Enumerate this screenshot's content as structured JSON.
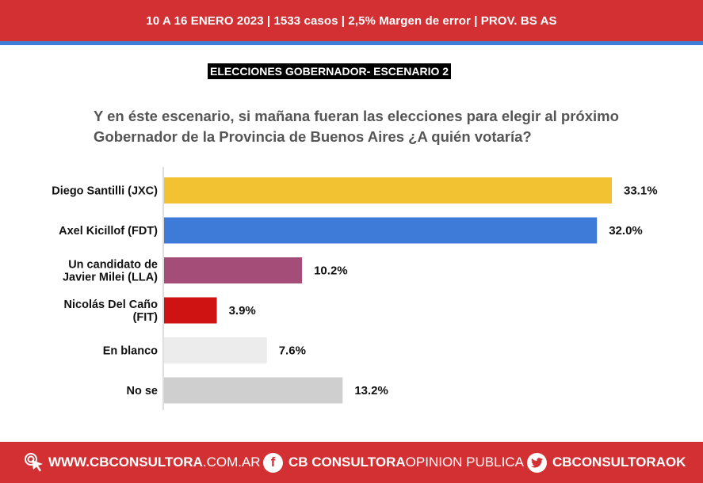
{
  "header": {
    "info": "10 A 16 ENERO 2023 | 1533 casos  |  2,5% Margen de error  | PROV. BS AS"
  },
  "section_label": "ELECCIONES GOBERNADOR- ESCENARIO 2",
  "question": {
    "line1": "Y en éste escenario, si mañana fueran las elecciones para elegir al próximo",
    "line2": "Gobernador de la Provincia de Buenos Aires ¿A quién votaría?"
  },
  "chart_data": {
    "type": "bar",
    "orientation": "horizontal",
    "categories": [
      "Diego Santilli (JXC)",
      "Axel Kicillof (FDT)",
      "Un candidato de\nJavier Milei (LLA)",
      "Nicolás Del Caño\n(FIT)",
      "En blanco",
      "No se"
    ],
    "values": [
      33.1,
      32.0,
      10.2,
      3.9,
      7.6,
      13.2
    ],
    "value_labels": [
      "33.1%",
      "32.0%",
      "10.2%",
      "3.9%",
      "7.6%",
      "13.2%"
    ],
    "colors": [
      "#f2c233",
      "#3e7bd8",
      "#a34d78",
      "#cf1212",
      "#ececec",
      "#cfcfcf"
    ],
    "xlim": [
      0,
      33.1
    ],
    "grid": false
  },
  "footer": {
    "web_strong": "WWW.CBCONSULTORA",
    "web_light": ".COM.AR",
    "fb_strong": "CB CONSULTORA",
    "fb_light": " OPINION PUBLICA",
    "tw_strong": "CBCONSULTORAOK",
    "facebook_icon_glyph": "f",
    "icons": [
      "cursor-click-icon",
      "facebook-icon",
      "twitter-icon"
    ]
  },
  "colors": {
    "brand_red": "#d33034",
    "accent_blue": "#3e7cd6"
  }
}
